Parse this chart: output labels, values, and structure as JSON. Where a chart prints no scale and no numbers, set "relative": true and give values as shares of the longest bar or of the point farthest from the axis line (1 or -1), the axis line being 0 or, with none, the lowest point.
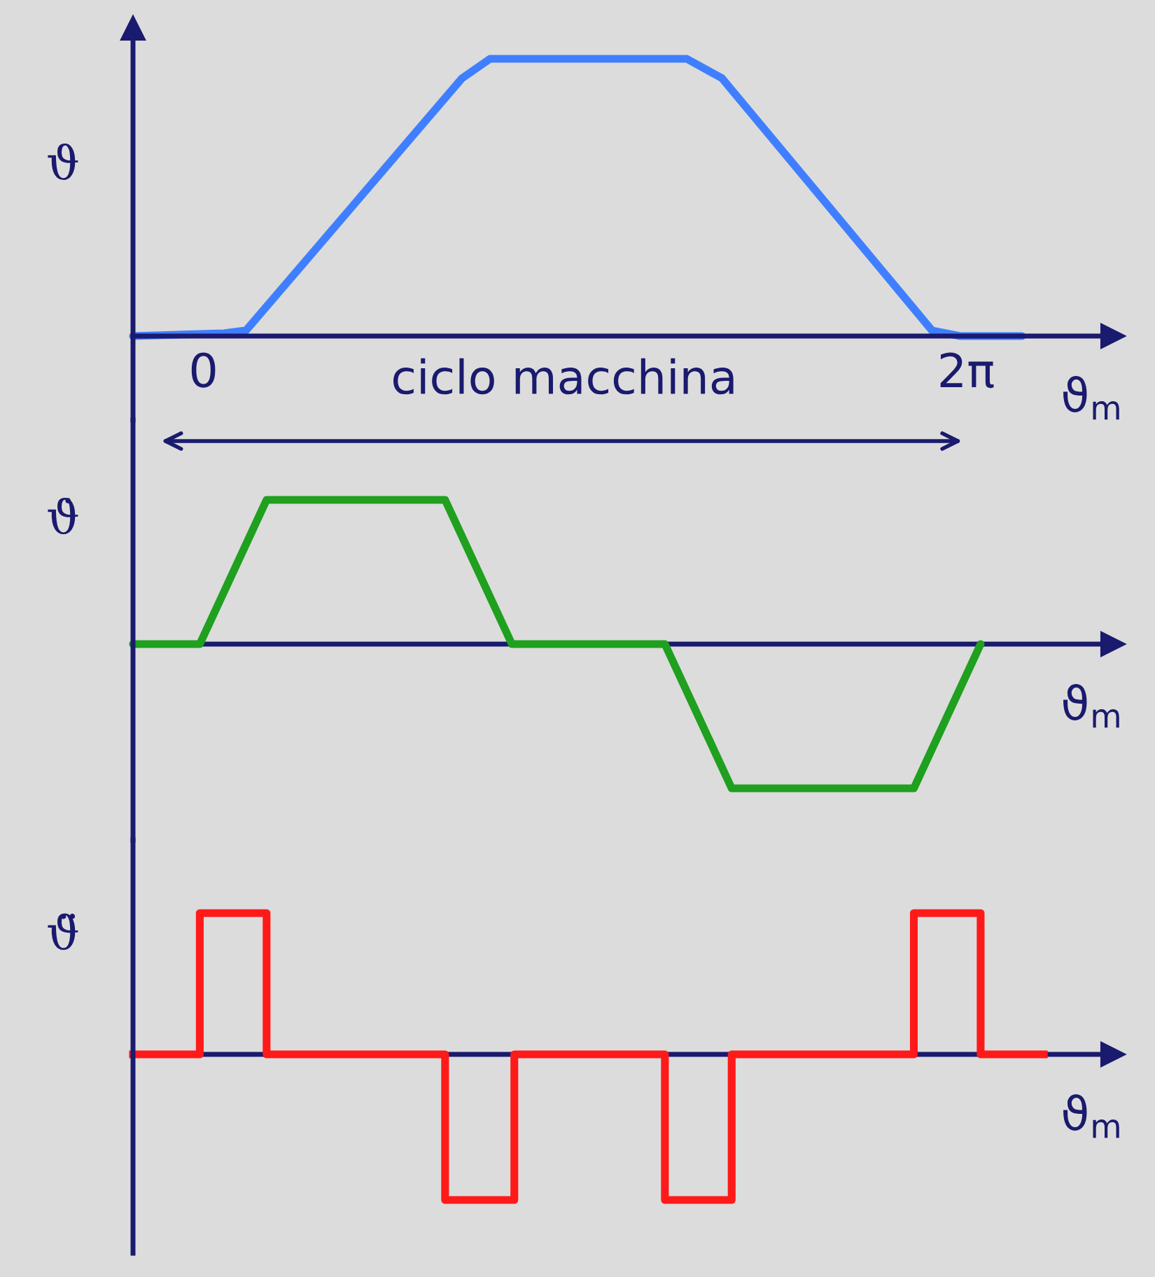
{
  "chart_data": [
    {
      "type": "line",
      "relative": true,
      "ylabel": "ϑ",
      "xlabel": "ϑ$_{m}$",
      "annotations": [
        "ciclo macchina"
      ],
      "x": [
        -0.58,
        0.17,
        0.35,
        2.13,
        2.36,
        3.98,
        4.27,
        6.0,
        6.23,
        6.74
      ],
      "series": [
        {
          "color": "#3f7fff",
          "values": [
            0,
            0.01,
            0.02,
            0.93,
            1,
            1,
            0.93,
            0.02,
            0,
            0
          ]
        }
      ],
      "xlim": [
        -0.58,
        7.49
      ],
      "xticks": [
        {
          "value": 0,
          "label": "0"
        },
        {
          "value": 6.28,
          "label": "2π"
        }
      ],
      "tick_labels": "x"
    },
    {
      "type": "line",
      "relative": true,
      "ylabel": "ϑ̇",
      "xlabel": "ϑ$_{m}$",
      "x": [
        -0.58,
        -0.03,
        0.52,
        1.99,
        2.54,
        3.8,
        4.35,
        5.85,
        6.4
      ],
      "series": [
        {
          "color": "#1fa01f",
          "values": [
            0,
            0,
            1,
            1,
            0,
            0,
            -1,
            -1,
            0
          ]
        }
      ],
      "xlim": [
        -0.58,
        7.49
      ],
      "tick_labels": false,
      "ref_lines": [
        {
          "axis": "y",
          "value": 0,
          "color": "#1a1a6e"
        }
      ]
    },
    {
      "type": "step",
      "relative": true,
      "ylabel": "ϑ̈",
      "xlabel": "ϑ$_{m}$",
      "x": [
        -0.58,
        -0.03,
        0.52,
        1.99,
        2.56,
        3.8,
        4.35,
        5.85,
        6.4,
        6.92
      ],
      "series": [
        {
          "color": "#ff1a1a",
          "values": [
            0,
            0.97,
            0,
            -1,
            0,
            -1,
            0,
            0.97,
            0,
            0
          ]
        }
      ],
      "xlim": [
        -0.58,
        7.49
      ],
      "tick_labels": false,
      "ref_lines": [
        {
          "axis": "y",
          "value": 0,
          "color": "#1a1a6e"
        }
      ]
    }
  ]
}
